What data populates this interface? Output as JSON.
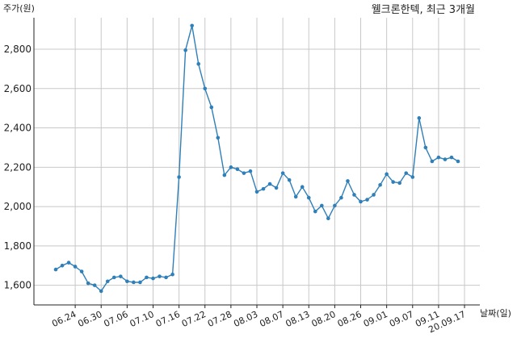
{
  "chart_data": {
    "type": "line",
    "title": "웰크론한텍, 최근 3개월",
    "ylabel": "주가(원)",
    "xlabel": "날짜(일)",
    "ylim": [
      1500,
      2960
    ],
    "yticks": [
      1600,
      1800,
      2000,
      2200,
      2400,
      2600,
      2800
    ],
    "ytick_labels": [
      "1,600",
      "1,800",
      "2,000",
      "2,200",
      "2,400",
      "2,600",
      "2,800"
    ],
    "grid": true,
    "colors": {
      "line": "#2f7fb8",
      "grid": "#c8c8c8",
      "axis": "#222222"
    },
    "x_tick_labels": [
      "06.24",
      "06.30",
      "07.06",
      "07.10",
      "07.16",
      "07.22",
      "07.28",
      "08.03",
      "08.07",
      "08.13",
      "08.20",
      "08.26",
      "09.01",
      "09.07",
      "09.11",
      "20.09.17"
    ],
    "x_tick_indices": [
      3,
      7,
      11,
      15,
      19,
      23,
      27,
      31,
      35,
      39,
      43,
      47,
      51,
      55,
      59,
      63
    ],
    "series": [
      {
        "values": [
          1680,
          1700,
          1715,
          1695,
          1670,
          1610,
          1600,
          1570,
          1620,
          1640,
          1645,
          1620,
          1615,
          1615,
          1640,
          1635,
          1645,
          1640,
          1655,
          2150,
          2795,
          2920,
          2725,
          2600,
          2505,
          2350,
          2160,
          2200,
          2190,
          2170,
          2180,
          2075,
          2090,
          2115,
          2095,
          2170,
          2135,
          2050,
          2100,
          2045,
          1975,
          2005,
          1940,
          2005,
          2045,
          2130,
          2060,
          2025,
          2035,
          2060,
          2110,
          2165,
          2125,
          2120,
          2170,
          2150,
          2450,
          2300,
          2230,
          2250,
          2240,
          2250,
          2230
        ]
      }
    ]
  }
}
